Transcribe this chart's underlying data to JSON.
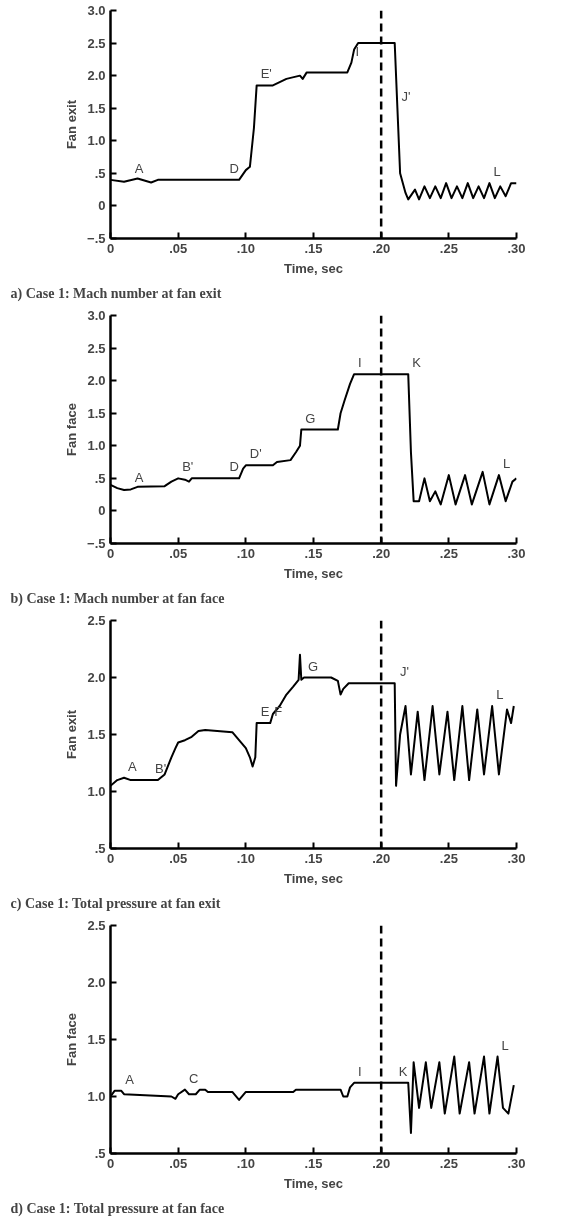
{
  "chart_data": [
    {
      "type": "line",
      "title": "a) Case 1: Mach number at fan exit",
      "xlabel": "Time, sec",
      "ylabel": "Fan exit",
      "grid": false,
      "marker": "none",
      "line_style": "solid",
      "xlim": [
        0,
        0.3
      ],
      "ylim": [
        -0.5,
        3.0
      ],
      "xticks": [
        0,
        {
          "value": 0.05,
          "label": ".05"
        },
        {
          "value": 0.1,
          "label": ".10"
        },
        {
          "value": 0.15,
          "label": ".15"
        },
        {
          "value": 0.2,
          "label": ".20"
        },
        {
          "value": 0.25,
          "label": ".25"
        },
        {
          "value": 0.3,
          "label": ".30"
        }
      ],
      "yticks": [
        {
          "value": -0.5,
          "label": "−.5"
        },
        0,
        {
          "value": 0.5,
          "label": ".5"
        },
        {
          "value": 1.0,
          "label": "1.0"
        },
        {
          "value": 1.5,
          "label": "1.5"
        },
        {
          "value": 2.0,
          "label": "2.0"
        },
        {
          "value": 2.5,
          "label": "2.5"
        },
        {
          "value": 3.0,
          "label": "3.0"
        }
      ],
      "series": [
        {
          "color": "#000000",
          "x": [
            0,
            0.01,
            0.02,
            0.03,
            0.035,
            0.095,
            0.1,
            0.103,
            0.106,
            0.108,
            0.12,
            0.13,
            0.14,
            0.142,
            0.145,
            0.175,
            0.178,
            0.18,
            0.183,
            0.21,
            0.212,
            0.214,
            0.218,
            0.22,
            0.225,
            0.228,
            0.232,
            0.236,
            0.24,
            0.244,
            0.248,
            0.252,
            0.256,
            0.26,
            0.264,
            0.268,
            0.272,
            0.276,
            0.28,
            0.284,
            0.288,
            0.292,
            0.296,
            0.3
          ],
          "values": [
            0.4,
            0.37,
            0.42,
            0.36,
            0.4,
            0.4,
            0.55,
            0.6,
            1.2,
            1.85,
            1.85,
            1.95,
            2.0,
            1.95,
            2.05,
            2.05,
            2.2,
            2.4,
            2.5,
            2.5,
            1.5,
            0.5,
            0.2,
            0.1,
            0.25,
            0.1,
            0.3,
            0.12,
            0.3,
            0.12,
            0.35,
            0.12,
            0.3,
            0.12,
            0.35,
            0.12,
            0.3,
            0.12,
            0.35,
            0.12,
            0.3,
            0.15,
            0.35,
            0.35
          ]
        }
      ],
      "ref_lines": [
        {
          "axis": "x",
          "value": 0.2,
          "line_style": "dashed",
          "color": "#000000"
        }
      ],
      "annotations": [
        {
          "text": "A",
          "x": 0.015,
          "y": 0.4
        },
        {
          "text": "D",
          "x": 0.085,
          "y": 0.4
        },
        {
          "text": "E'",
          "x": 0.108,
          "y": 1.85
        },
        {
          "text": "I",
          "x": 0.178,
          "y": 2.2
        },
        {
          "text": "J'",
          "x": 0.212,
          "y": 1.5
        },
        {
          "text": "L",
          "x": 0.28,
          "y": 0.35
        }
      ]
    },
    {
      "type": "line",
      "title": "b) Case 1: Mach number at fan face",
      "xlabel": "Time, sec",
      "ylabel": "Fan face",
      "grid": false,
      "marker": "none",
      "line_style": "solid",
      "xlim": [
        0,
        0.3
      ],
      "ylim": [
        -0.5,
        3.0
      ],
      "xticks": [
        0,
        {
          "value": 0.05,
          "label": ".05"
        },
        {
          "value": 0.1,
          "label": ".10"
        },
        {
          "value": 0.15,
          "label": ".15"
        },
        {
          "value": 0.2,
          "label": ".20"
        },
        {
          "value": 0.25,
          "label": ".25"
        },
        {
          "value": 0.3,
          "label": ".30"
        }
      ],
      "yticks": [
        {
          "value": -0.5,
          "label": "−.5"
        },
        0,
        {
          "value": 0.5,
          "label": ".5"
        },
        {
          "value": 1.0,
          "label": "1.0"
        },
        {
          "value": 1.5,
          "label": "1.5"
        },
        {
          "value": 2.0,
          "label": "2.0"
        },
        {
          "value": 2.5,
          "label": "2.5"
        },
        {
          "value": 3.0,
          "label": "3.0"
        }
      ],
      "series": [
        {
          "color": "#000000",
          "x": [
            0,
            0.005,
            0.01,
            0.015,
            0.02,
            0.04,
            0.045,
            0.05,
            0.055,
            0.058,
            0.06,
            0.095,
            0.098,
            0.1,
            0.12,
            0.123,
            0.133,
            0.137,
            0.14,
            0.141,
            0.168,
            0.17,
            0.173,
            0.177,
            0.18,
            0.22,
            0.222,
            0.224,
            0.228,
            0.232,
            0.236,
            0.24,
            0.244,
            0.25,
            0.255,
            0.262,
            0.267,
            0.275,
            0.28,
            0.287,
            0.292,
            0.297,
            0.3
          ],
          "values": [
            0.4,
            0.35,
            0.32,
            0.33,
            0.37,
            0.38,
            0.45,
            0.5,
            0.48,
            0.45,
            0.5,
            0.5,
            0.65,
            0.7,
            0.7,
            0.75,
            0.78,
            0.9,
            1.0,
            1.25,
            1.25,
            1.5,
            1.7,
            1.95,
            2.1,
            2.1,
            0.9,
            0.15,
            0.15,
            0.5,
            0.15,
            0.3,
            0.1,
            0.55,
            0.1,
            0.55,
            0.1,
            0.6,
            0.1,
            0.55,
            0.15,
            0.45,
            0.5
          ]
        }
      ],
      "ref_lines": [
        {
          "axis": "x",
          "value": 0.2,
          "line_style": "dashed",
          "color": "#000000"
        }
      ],
      "annotations": [
        {
          "text": "A",
          "x": 0.015,
          "y": 0.33
        },
        {
          "text": "B'",
          "x": 0.05,
          "y": 0.5
        },
        {
          "text": "D",
          "x": 0.085,
          "y": 0.5
        },
        {
          "text": "D'",
          "x": 0.1,
          "y": 0.7
        },
        {
          "text": "G",
          "x": 0.141,
          "y": 1.25
        },
        {
          "text": "I",
          "x": 0.18,
          "y": 2.1
        },
        {
          "text": "K",
          "x": 0.22,
          "y": 2.1
        },
        {
          "text": "L",
          "x": 0.287,
          "y": 0.55
        }
      ]
    },
    {
      "type": "line",
      "title": "c) Case 1: Total pressure at fan exit",
      "xlabel": "Time, sec",
      "ylabel": "Fan exit",
      "grid": false,
      "marker": "none",
      "line_style": "solid",
      "xlim": [
        0,
        0.3
      ],
      "ylim": [
        0.5,
        2.5
      ],
      "xticks": [
        0,
        {
          "value": 0.05,
          "label": ".05"
        },
        {
          "value": 0.1,
          "label": ".10"
        },
        {
          "value": 0.15,
          "label": ".15"
        },
        {
          "value": 0.2,
          "label": ".20"
        },
        {
          "value": 0.25,
          "label": ".25"
        },
        {
          "value": 0.3,
          "label": ".30"
        }
      ],
      "yticks": [
        {
          "value": 0.5,
          "label": ".5"
        },
        {
          "value": 1.0,
          "label": "1.0"
        },
        {
          "value": 1.5,
          "label": "1.5"
        },
        {
          "value": 2.0,
          "label": "2.0"
        },
        {
          "value": 2.5,
          "label": "2.5"
        }
      ],
      "series": [
        {
          "color": "#000000",
          "x": [
            0,
            0.005,
            0.01,
            0.015,
            0.035,
            0.04,
            0.045,
            0.048,
            0.05,
            0.055,
            0.06,
            0.065,
            0.07,
            0.09,
            0.095,
            0.1,
            0.103,
            0.105,
            0.107,
            0.108,
            0.118,
            0.12,
            0.125,
            0.13,
            0.135,
            0.139,
            0.14,
            0.141,
            0.143,
            0.163,
            0.168,
            0.17,
            0.172,
            0.176,
            0.18,
            0.21,
            0.211,
            0.214,
            0.218,
            0.222,
            0.227,
            0.232,
            0.238,
            0.243,
            0.249,
            0.254,
            0.26,
            0.265,
            0.271,
            0.276,
            0.282,
            0.287,
            0.293,
            0.296,
            0.298
          ],
          "values": [
            1.05,
            1.1,
            1.12,
            1.1,
            1.1,
            1.15,
            1.3,
            1.38,
            1.43,
            1.45,
            1.48,
            1.53,
            1.54,
            1.52,
            1.45,
            1.38,
            1.3,
            1.22,
            1.3,
            1.6,
            1.6,
            1.68,
            1.75,
            1.85,
            1.92,
            1.98,
            2.2,
            1.98,
            2.0,
            2.0,
            1.97,
            1.85,
            1.9,
            1.95,
            1.95,
            1.95,
            1.05,
            1.5,
            1.75,
            1.15,
            1.7,
            1.1,
            1.75,
            1.15,
            1.7,
            1.1,
            1.75,
            1.1,
            1.72,
            1.15,
            1.75,
            1.15,
            1.72,
            1.6,
            1.75
          ]
        }
      ],
      "ref_lines": [
        {
          "axis": "x",
          "value": 0.2,
          "line_style": "dashed",
          "color": "#000000"
        }
      ],
      "annotations": [
        {
          "text": "A",
          "x": 0.01,
          "y": 1.12
        },
        {
          "text": "B'",
          "x": 0.03,
          "y": 1.1
        },
        {
          "text": "E",
          "x": 0.108,
          "y": 1.6
        },
        {
          "text": "F",
          "x": 0.118,
          "y": 1.6
        },
        {
          "text": "G",
          "x": 0.143,
          "y": 2.0
        },
        {
          "text": "J'",
          "x": 0.211,
          "y": 1.95
        },
        {
          "text": "L",
          "x": 0.282,
          "y": 1.75
        }
      ]
    },
    {
      "type": "line",
      "title": "d) Case 1: Total pressure at fan face",
      "xlabel": "Time, sec",
      "ylabel": "Fan face",
      "grid": false,
      "marker": "none",
      "line_style": "solid",
      "xlim": [
        0,
        0.3
      ],
      "ylim": [
        0.5,
        2.5
      ],
      "xticks": [
        0,
        {
          "value": 0.05,
          "label": ".05"
        },
        {
          "value": 0.1,
          "label": ".10"
        },
        {
          "value": 0.15,
          "label": ".15"
        },
        {
          "value": 0.2,
          "label": ".20"
        },
        {
          "value": 0.25,
          "label": ".25"
        },
        {
          "value": 0.3,
          "label": ".30"
        }
      ],
      "yticks": [
        {
          "value": 0.5,
          "label": ".5"
        },
        {
          "value": 1.0,
          "label": "1.0"
        },
        {
          "value": 1.5,
          "label": "1.5"
        },
        {
          "value": 2.0,
          "label": "2.0"
        },
        {
          "value": 2.5,
          "label": "2.5"
        }
      ],
      "series": [
        {
          "color": "#000000",
          "x": [
            0,
            0.003,
            0.008,
            0.01,
            0.045,
            0.048,
            0.05,
            0.055,
            0.058,
            0.063,
            0.066,
            0.07,
            0.072,
            0.09,
            0.095,
            0.1,
            0.135,
            0.137,
            0.17,
            0.172,
            0.175,
            0.177,
            0.18,
            0.22,
            0.222,
            0.224,
            0.228,
            0.233,
            0.237,
            0.243,
            0.247,
            0.254,
            0.258,
            0.265,
            0.269,
            0.276,
            0.28,
            0.286,
            0.29,
            0.294,
            0.298
          ],
          "values": [
            1.0,
            1.05,
            1.05,
            1.02,
            1.0,
            0.98,
            1.02,
            1.06,
            1.02,
            1.02,
            1.06,
            1.06,
            1.04,
            1.04,
            0.97,
            1.04,
            1.04,
            1.06,
            1.06,
            1.0,
            1.0,
            1.08,
            1.12,
            1.12,
            0.68,
            1.3,
            0.9,
            1.3,
            0.9,
            1.3,
            0.85,
            1.35,
            0.85,
            1.3,
            0.85,
            1.35,
            0.85,
            1.35,
            0.9,
            0.85,
            1.1
          ]
        }
      ],
      "ref_lines": [
        {
          "axis": "x",
          "value": 0.2,
          "line_style": "dashed",
          "color": "#000000"
        }
      ],
      "annotations": [
        {
          "text": "A",
          "x": 0.008,
          "y": 1.05
        },
        {
          "text": "C",
          "x": 0.055,
          "y": 1.06
        },
        {
          "text": "I",
          "x": 0.18,
          "y": 1.12
        },
        {
          "text": "K",
          "x": 0.21,
          "y": 1.12
        },
        {
          "text": "L",
          "x": 0.286,
          "y": 1.35
        }
      ]
    }
  ]
}
